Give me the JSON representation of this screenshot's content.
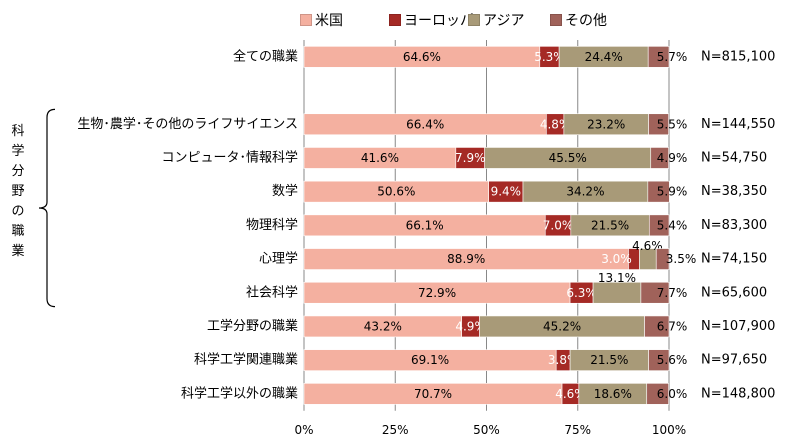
{
  "chart_data": {
    "type": "bar",
    "orientation": "horizontal",
    "stacked": true,
    "percent": true,
    "categories": [
      "全ての職業",
      "",
      "生物･農学･その他のライフサイエンス",
      "コンピュータ･情報科学",
      "数学",
      "物理科学",
      "心理学",
      "社会科学",
      "工学分野の職業",
      "科学工学関連職業",
      "科学工学以外の職業"
    ],
    "series": [
      {
        "name": "米国",
        "color": "#f4b0a0",
        "values": [
          64.6,
          null,
          66.4,
          41.6,
          50.6,
          66.1,
          88.9,
          72.9,
          43.2,
          69.1,
          70.7
        ],
        "labels": [
          "64.6%",
          "",
          "66.4%",
          "41.6%",
          "50.6%",
          "66.1%",
          "88.9%",
          "72.9%",
          "43.2%",
          "69.1%",
          "70.7%"
        ]
      },
      {
        "name": "ヨーロッパ",
        "color": "#a52a25",
        "values": [
          5.3,
          null,
          4.8,
          7.9,
          9.4,
          7.0,
          3.0,
          6.3,
          4.9,
          3.8,
          4.6
        ],
        "labels": [
          "5.3%",
          "",
          "4.8%",
          "7.9%",
          "9.4%",
          "7.0%",
          "3.0%",
          "6.3%",
          "4.9%",
          "3.8%",
          "4.6%"
        ]
      },
      {
        "name": "アジア",
        "color": "#a89a78",
        "values": [
          24.4,
          null,
          23.2,
          45.5,
          34.2,
          21.5,
          4.6,
          13.1,
          45.2,
          21.5,
          18.6
        ],
        "labels": [
          "24.4%",
          "",
          "23.2%",
          "45.5%",
          "34.2%",
          "21.5%",
          "4.6%",
          "13.1%",
          "45.2%",
          "21.5%",
          "18.6%"
        ]
      },
      {
        "name": "その他",
        "color": "#a0625a",
        "values": [
          5.7,
          null,
          5.5,
          4.9,
          5.9,
          5.4,
          3.5,
          7.7,
          6.7,
          5.6,
          6.0
        ],
        "labels": [
          "5.7%",
          "",
          "5.5%",
          "4.9%",
          "5.9%",
          "5.4%",
          "3.5%",
          "7.7%",
          "6.7%",
          "5.6%",
          "6.0%"
        ]
      }
    ],
    "n_labels": [
      "N=815,100",
      "",
      "N=144,550",
      "N=54,750",
      "N=38,350",
      "N=83,300",
      "N=74,150",
      "N=65,600",
      "N=107,900",
      "N=97,650",
      "N=148,800"
    ],
    "xticks": [
      "0%",
      "25%",
      "50%",
      "75%",
      "100%"
    ],
    "xlim": [
      0,
      100
    ],
    "grid": true,
    "legend_position": "top",
    "group_label": "科学分野の職業"
  }
}
